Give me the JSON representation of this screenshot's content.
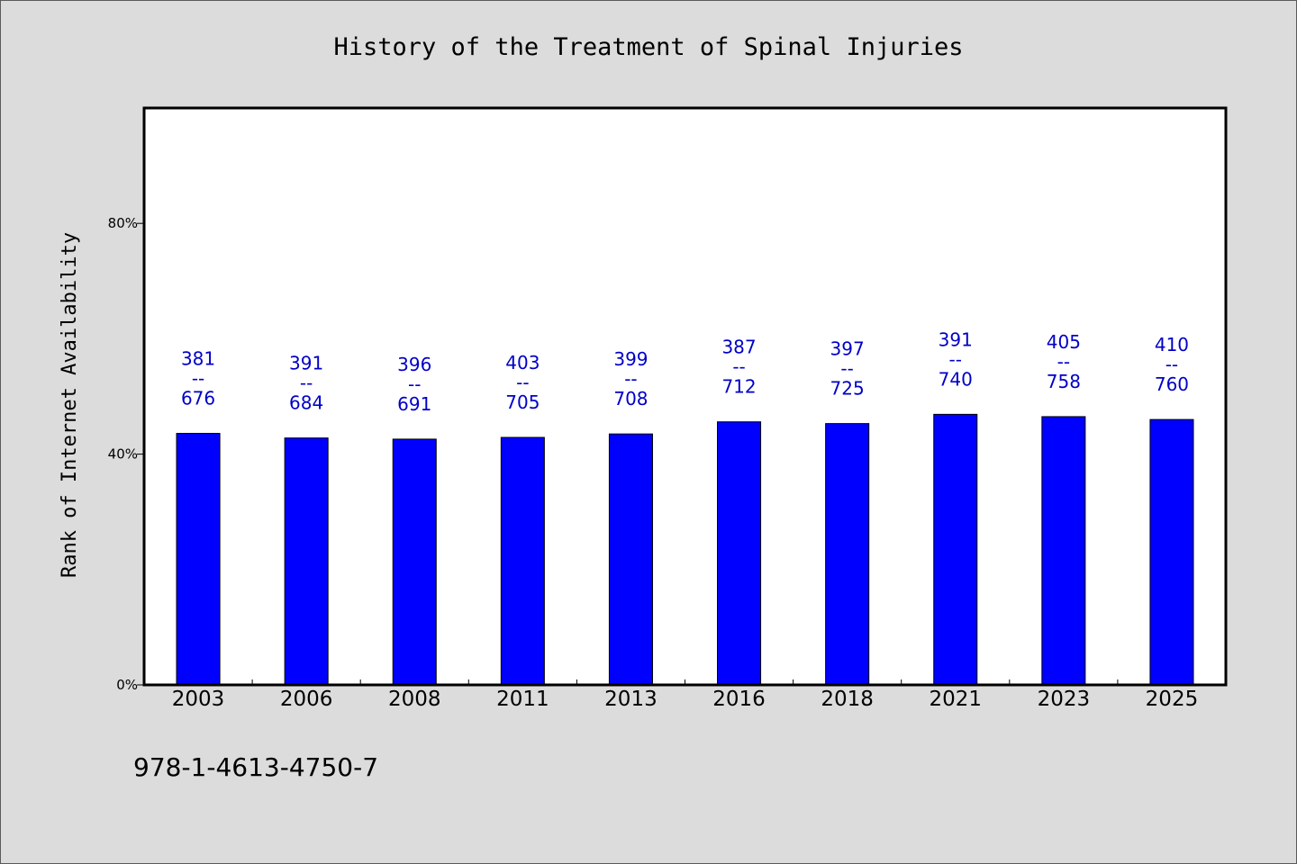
{
  "chart_data": {
    "type": "bar",
    "title": "History of the Treatment of Spinal Injuries",
    "xlabel": "",
    "ylabel": "Rank of Internet Availability",
    "categories": [
      "2003",
      "2006",
      "2008",
      "2011",
      "2013",
      "2016",
      "2018",
      "2021",
      "2023",
      "2025"
    ],
    "values": [
      43.6,
      42.8,
      42.6,
      42.9,
      43.5,
      45.6,
      45.3,
      46.9,
      46.5,
      46.0
    ],
    "value_unit": "%",
    "data_labels": [
      {
        "top": "381",
        "sep": "--",
        "bottom": "676"
      },
      {
        "top": "391",
        "sep": "--",
        "bottom": "684"
      },
      {
        "top": "396",
        "sep": "--",
        "bottom": "691"
      },
      {
        "top": "403",
        "sep": "--",
        "bottom": "705"
      },
      {
        "top": "399",
        "sep": "--",
        "bottom": "708"
      },
      {
        "top": "387",
        "sep": "--",
        "bottom": "712"
      },
      {
        "top": "397",
        "sep": "--",
        "bottom": "725"
      },
      {
        "top": "391",
        "sep": "--",
        "bottom": "740"
      },
      {
        "top": "405",
        "sep": "--",
        "bottom": "758"
      },
      {
        "top": "410",
        "sep": "--",
        "bottom": "760"
      }
    ],
    "yticks": [
      0,
      40,
      80
    ],
    "ytick_labels": [
      "0%",
      "40%",
      "80%"
    ],
    "ylim": [
      0,
      100
    ],
    "grid": false,
    "legend": "none",
    "colors": {
      "bar": "#0000ff",
      "bar_edge": "#000000",
      "data_label": "#0000c8",
      "plot_background": "#ffffff",
      "page_background": "#dcdcdc"
    }
  },
  "footer": {
    "isbn": "978-1-4613-4750-7"
  }
}
